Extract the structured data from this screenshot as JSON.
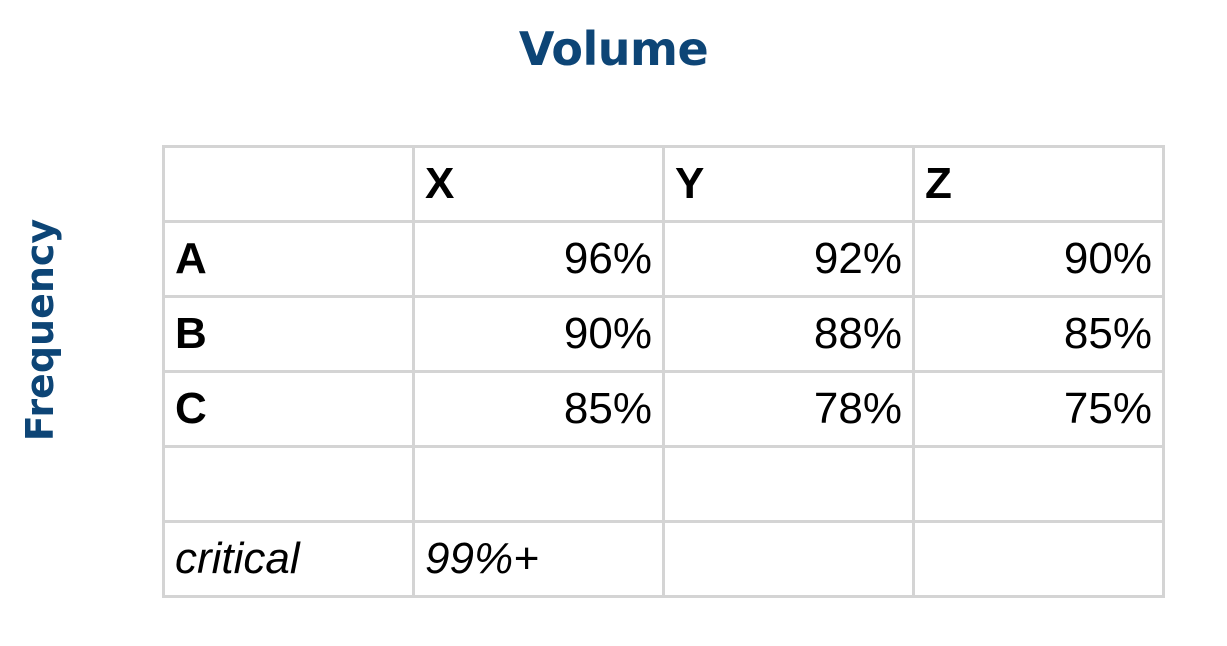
{
  "title_top": "Volume",
  "title_side": "Frequency",
  "table": {
    "columns": [
      "",
      "X",
      "Y",
      "Z"
    ],
    "rows": [
      {
        "label": "A",
        "values": [
          "96%",
          "92%",
          "90%"
        ]
      },
      {
        "label": "B",
        "values": [
          "90%",
          "88%",
          "85%"
        ]
      },
      {
        "label": "C",
        "values": [
          "85%",
          "78%",
          "75%"
        ]
      },
      {
        "label": "",
        "values": [
          "",
          "",
          ""
        ]
      },
      {
        "label": "critical",
        "values": [
          "99%+",
          "",
          ""
        ]
      }
    ]
  },
  "colors": {
    "title": "#0d4576",
    "grid_line": "#d4d4d4"
  }
}
